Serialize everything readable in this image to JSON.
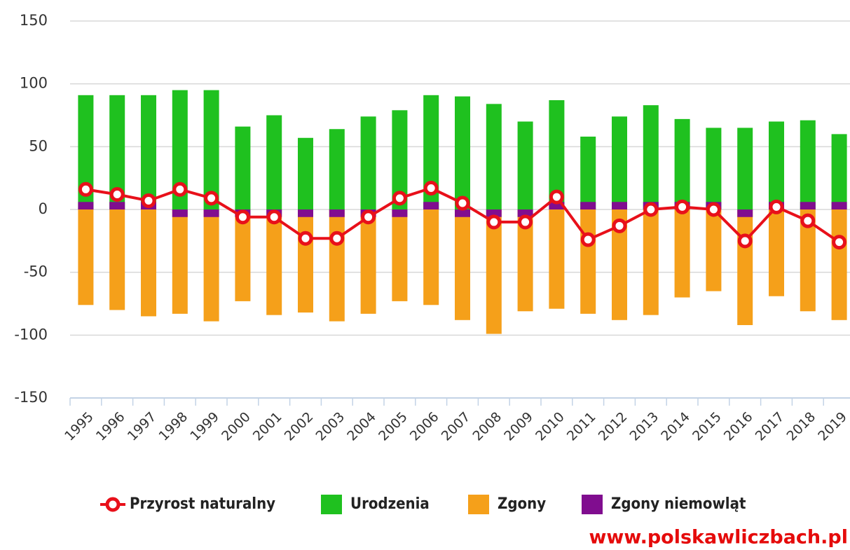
{
  "chart_data": {
    "type": "bar",
    "categories": [
      "1995",
      "1996",
      "1997",
      "1998",
      "1999",
      "2000",
      "2001",
      "2002",
      "2003",
      "2004",
      "2005",
      "2006",
      "2007",
      "2008",
      "2009",
      "2010",
      "2011",
      "2012",
      "2013",
      "2014",
      "2015",
      "2016",
      "2017",
      "2018",
      "2019"
    ],
    "series": [
      {
        "name": "Przyrost naturalny",
        "type": "line",
        "color": "#e8101a",
        "values": [
          16,
          12,
          7,
          16,
          9,
          -6,
          -6,
          -23,
          -23,
          -6,
          9,
          17,
          5,
          -10,
          -10,
          10,
          -24,
          -13,
          0,
          2,
          0,
          -25,
          2,
          -9,
          -26
        ]
      },
      {
        "name": "Urodzenia",
        "type": "bar",
        "color": "#1fc11f",
        "values": [
          91,
          91,
          91,
          95,
          95,
          66,
          75,
          57,
          64,
          74,
          79,
          91,
          90,
          84,
          70,
          87,
          58,
          74,
          83,
          72,
          65,
          65,
          70,
          71,
          60
        ]
      },
      {
        "name": "Zgony",
        "type": "bar",
        "color": "#f5a01a",
        "values": [
          -76,
          -80,
          -85,
          -83,
          -89,
          -73,
          -84,
          -82,
          -89,
          -83,
          -73,
          -76,
          -88,
          -99,
          -81,
          -79,
          -83,
          -88,
          -84,
          -70,
          -65,
          -92,
          -69,
          -81,
          -88
        ]
      },
      {
        "name": "Zgony niemowląt",
        "type": "bar",
        "color": "#800d8f",
        "values": [
          6,
          6,
          6,
          -6,
          -6,
          -6,
          -6,
          -6,
          -6,
          -6,
          -6,
          6,
          -6,
          -6,
          -6,
          6,
          6,
          6,
          6,
          6,
          6,
          -6,
          6,
          6,
          6
        ]
      }
    ],
    "ylim": [
      -150,
      150
    ],
    "yticks": [
      150,
      100,
      50,
      0,
      -50,
      -100,
      -150
    ],
    "grid": true,
    "watermark": "www.polskawliczbach.pl"
  }
}
